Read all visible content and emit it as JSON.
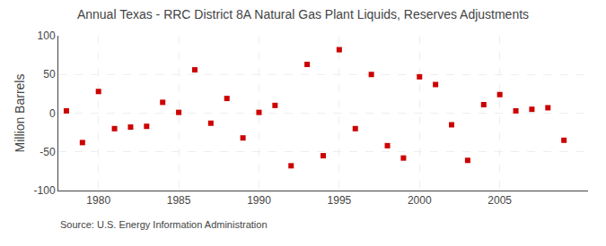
{
  "chart_data": {
    "type": "scatter",
    "title": "Annual Texas - RRC District 8A Natural Gas Plant Liquids, Reserves Adjustments",
    "ylabel": "Million Barrels",
    "annotations": [
      "Source: U.S. Energy Information Administration"
    ],
    "x": [
      1978,
      1979,
      1980,
      1981,
      1982,
      1983,
      1984,
      1985,
      1986,
      1987,
      1988,
      1989,
      1990,
      1991,
      1992,
      1993,
      1994,
      1995,
      1996,
      1997,
      1998,
      1999,
      2000,
      2001,
      2002,
      2003,
      2004,
      2005,
      2006,
      2007,
      2008,
      2009
    ],
    "values": [
      3,
      -38,
      28,
      -20,
      -18,
      -17,
      14,
      1,
      56,
      -13,
      19,
      -32,
      1,
      10,
      -68,
      63,
      -55,
      82,
      -20,
      50,
      -42,
      -58,
      47,
      37,
      -15,
      -61,
      11,
      24,
      3,
      5,
      7,
      -35
    ],
    "color": "#cc0000",
    "marker": "square",
    "xlim": [
      1977.5,
      2010.5
    ],
    "ylim": [
      -100,
      100
    ],
    "xticks": [
      1980,
      1985,
      1990,
      1995,
      2000,
      2005
    ],
    "yticks": [
      -100,
      -50,
      0,
      50,
      100
    ],
    "grid": true
  }
}
